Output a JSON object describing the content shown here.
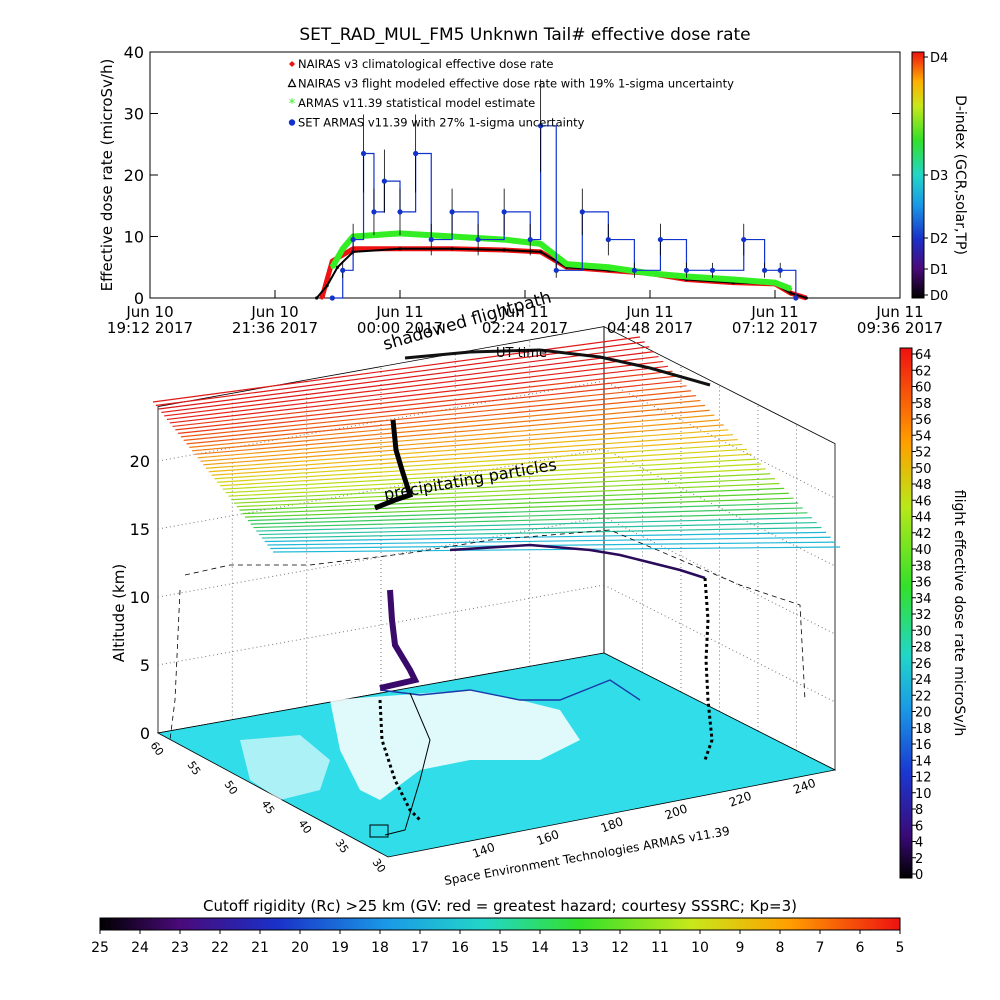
{
  "chart_data": [
    {
      "type": "scatter",
      "title": "SET_RAD_MUL_FM5 Unknwn Tail#  effective dose rate",
      "ylabel": "Effective dose rate (microSv/h)",
      "ylim": [
        0,
        40
      ],
      "yticks": [
        "0",
        "10",
        "20",
        "30",
        "40"
      ],
      "xticks": [
        {
          "day": "Jun 10",
          "time": "19:12 2017"
        },
        {
          "day": "Jun 10",
          "time": "21:36 2017"
        },
        {
          "day": "Jun 11",
          "time": "00:00 2017"
        },
        {
          "day": "Jun 11",
          "time": "02:24 2017"
        },
        {
          "day": "Jun 11",
          "time": "04:48 2017"
        },
        {
          "day": "Jun 11",
          "time": "07:12 2017"
        },
        {
          "day": "Jun 11",
          "time": "09:36 2017"
        }
      ],
      "x_hours": [
        -5,
        -4.8,
        -3,
        -2,
        -1,
        -0.3,
        0.5,
        1.5,
        2.4,
        2.7,
        3,
        3.5,
        4,
        4.5,
        5,
        5.5,
        6,
        6.5,
        7.3,
        7.7,
        8.2,
        9
      ],
      "legend": [
        {
          "label": "NAIRAS v3 climatological effective dose rate",
          "color": "#ee1111",
          "marker": "diamond"
        },
        {
          "label": "NAIRAS v3 flight modeled effective dose rate with 19% 1-sigma uncertainty",
          "color": "#000000",
          "marker": "triangle"
        },
        {
          "label": "ARMAS v11.39 statistical model estimate",
          "color": "#33ee22",
          "marker": "asterisk"
        },
        {
          "label": "SET ARMAS v11.39 with 27% 1-sigma uncertainty",
          "color": "#1133cc",
          "marker": "circle"
        }
      ],
      "series": [
        {
          "name": "NAIRAS v3 climatological effective dose rate",
          "x": [
            -1.5,
            -1.3,
            -0.9,
            0,
            1,
            2,
            2.7,
            3.2,
            4,
            4.8,
            5.5,
            6.4,
            7.2,
            7.5,
            7.8
          ],
          "y": [
            0,
            6,
            8,
            8,
            8,
            7.8,
            7.5,
            5,
            4.5,
            4,
            3,
            2.5,
            2.3,
            0.8,
            0
          ]
        },
        {
          "name": "NAIRAS v3 flight modeled effective dose rate with 19% 1-sigma uncertainty",
          "x": [
            -1.6,
            -1.4,
            -1.2,
            -0.9,
            0,
            1,
            2,
            2.7,
            3.2,
            4,
            4.8,
            5.5,
            6.4,
            7.2,
            7.5,
            7.8
          ],
          "y": [
            0,
            2,
            5,
            7.5,
            8,
            8,
            7.8,
            7.5,
            5,
            4.5,
            4,
            3,
            2.5,
            2.3,
            0.8,
            0
          ]
        },
        {
          "name": "ARMAS v11.39 statistical model estimate",
          "x": [
            -1.3,
            -1.1,
            -0.9,
            0,
            1,
            2,
            2.7,
            3.2,
            4,
            4.8,
            5.5,
            6.4,
            7.2,
            7.5
          ],
          "y": [
            5,
            8,
            10,
            10.5,
            10,
            9.5,
            8.8,
            5.5,
            5,
            4,
            3.5,
            3,
            2.5,
            1.5
          ]
        },
        {
          "name": "SET ARMAS v11.39 with 27% 1-sigma uncertainty",
          "x": [
            -1.3,
            -1.1,
            -0.9,
            -0.7,
            -0.5,
            -0.3,
            0,
            0.3,
            0.6,
            1,
            1.5,
            2,
            2.5,
            2.7,
            3,
            3.5,
            4,
            4.5,
            5,
            5.5,
            6,
            6.6,
            7,
            7.3,
            7.6
          ],
          "y": [
            0,
            4.5,
            9.5,
            23.5,
            14,
            19,
            14,
            23.5,
            9.5,
            14,
            9.5,
            14,
            9.5,
            28,
            4.5,
            14,
            9.5,
            4.5,
            9.5,
            4.5,
            4.5,
            9.5,
            4.5,
            4.5,
            0
          ]
        }
      ],
      "colorbar": {
        "label": "D-index (GCR,solar,TP)",
        "ticks": [
          "D4",
          "D3",
          "D2",
          "D1",
          "D0"
        ]
      }
    },
    {
      "type": "scatter",
      "annotations": [
        "shadowed flightpath",
        "UT time",
        "precipitating particles"
      ],
      "zlabel": "Altitude (km)",
      "zticks": [
        "0",
        "5",
        "10",
        "15",
        "20"
      ],
      "lat_ticks": [
        "30",
        "35",
        "40",
        "45",
        "50",
        "55",
        "60"
      ],
      "lon_ticks": [
        "140",
        "160",
        "180",
        "200",
        "220",
        "240"
      ],
      "credit": "Space Environment Technologies ARMAS v11.39",
      "colorbar": {
        "label": "flight effective dose rate microSv/h",
        "ticks": [
          "64",
          "62",
          "60",
          "58",
          "56",
          "54",
          "52",
          "50",
          "48",
          "46",
          "44",
          "42",
          "40",
          "38",
          "36",
          "34",
          "32",
          "30",
          "28",
          "26",
          "24",
          "22",
          "20",
          "18",
          "16",
          "14",
          "12",
          "10",
          "8",
          "6",
          "4",
          "2",
          "0"
        ]
      }
    },
    {
      "type": "heatmap",
      "title": "Cutoff rigidity (Rc) >25 km (GV: red = greatest hazard; courtesy SSSRC; Kp=3)",
      "colorbar_ticks": [
        "25",
        "24",
        "23",
        "22",
        "21",
        "20",
        "19",
        "18",
        "17",
        "16",
        "15",
        "14",
        "13",
        "12",
        "11",
        "10",
        "9",
        "8",
        "7",
        "6",
        "5"
      ]
    }
  ]
}
